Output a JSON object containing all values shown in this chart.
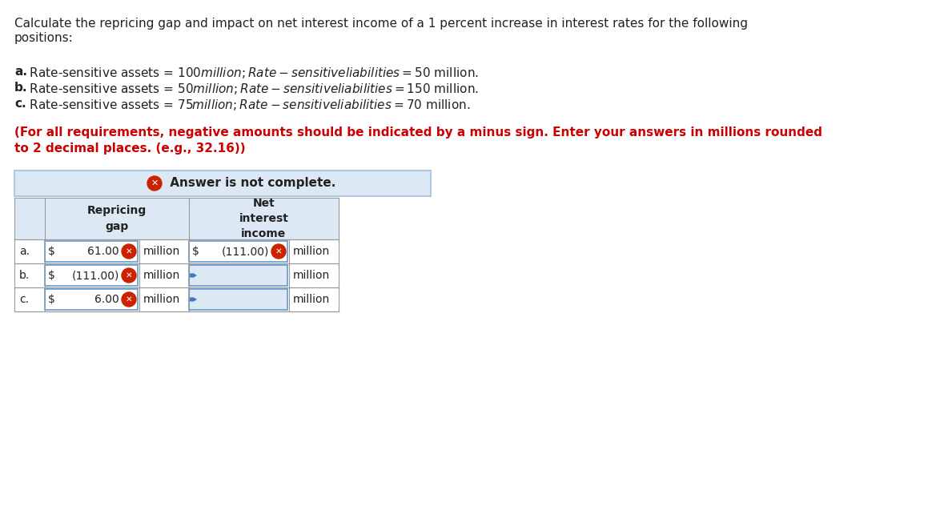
{
  "bg_color": "#ffffff",
  "title_line1": "Calculate the repricing gap and impact on net interest income of a 1 percent increase in interest rates for the following",
  "title_line2": "positions:",
  "bullet_a_bold": "a.",
  "bullet_a_rest": " Rate-sensitive assets = $100 million; Rate-sensitive liabilities = $50 million.",
  "bullet_b_bold": "b.",
  "bullet_b_rest": " Rate-sensitive assets = $50 million; Rate-sensitive liabilities = $150 million.",
  "bullet_c_bold": "c.",
  "bullet_c_rest": " Rate-sensitive assets = $75 million; Rate-sensitive liabilities = $70 million.",
  "note_line1": "(For all requirements, negative amounts should be indicated by a minus sign. Enter your answers in millions rounded",
  "note_line2": "to 2 decimal places. (e.g., 32.16))",
  "answer_banner_bg": "#dce9f5",
  "answer_banner_border": "#b0c8de",
  "table_header_bg": "#dce9f5",
  "table_row_bg_white": "#ffffff",
  "table_row_bg_blue": "#dce9f5",
  "table_border_color": "#999999",
  "icon_color": "#cc2200",
  "col_header_repricing": "Repricing\ngap",
  "col_header_net": "Net\ninterest\nincome",
  "rows": [
    {
      "label": "a.",
      "dollar1": "$",
      "val1": "61.00",
      "unit1": "million",
      "has_x1": true,
      "dollar2": "$",
      "val2": "(111.00)",
      "unit2": "million",
      "has_x2": true,
      "nii_white": true
    },
    {
      "label": "b.",
      "dollar1": "$",
      "val1": "(111.00)",
      "unit1": "million",
      "has_x1": true,
      "dollar2": "",
      "val2": "",
      "unit2": "million",
      "has_x2": false,
      "nii_white": false
    },
    {
      "label": "c.",
      "dollar1": "$",
      "val1": "6.00",
      "unit1": "million",
      "has_x1": true,
      "dollar2": "",
      "val2": "",
      "unit2": "million",
      "has_x2": false,
      "nii_white": false
    }
  ],
  "text_fontsize": 11,
  "note_fontsize": 11,
  "table_fontsize": 10,
  "banner_fontsize": 11
}
